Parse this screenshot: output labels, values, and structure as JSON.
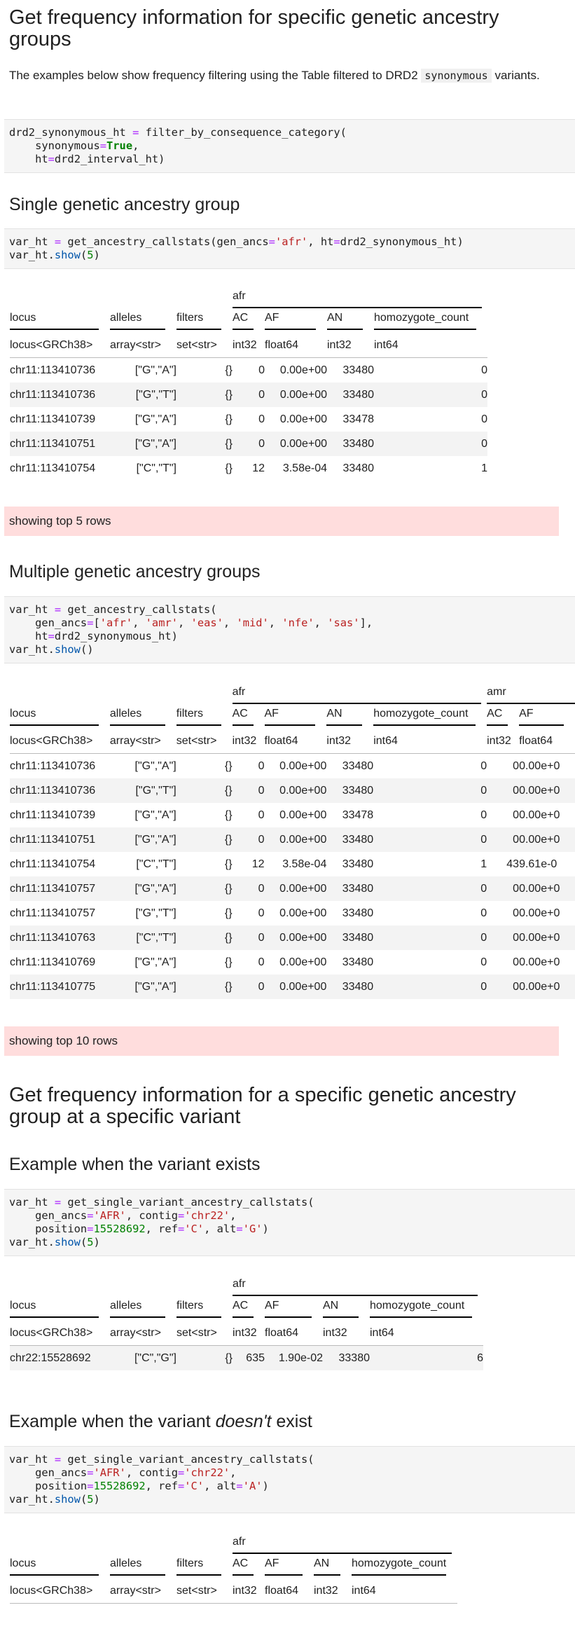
{
  "section_main": {
    "title": "Get frequency information for specific genetic ancestry groups",
    "intro_before": "The examples below show frequency filtering using the Table filtered to DRD2",
    "intro_code": "synonymous",
    "intro_after": "variants.",
    "code1": {
      "l1_a": "drd2_synonymous_ht ",
      "l1_op": "=",
      "l1_b": " filter_by_consequence_category(",
      "l2_a": "    synonymous",
      "l2_op": "=",
      "l2_kw": "True",
      "l2_b": ",",
      "l3_a": "    ht",
      "l3_op": "=",
      "l3_b": "drd2_interval_ht)"
    }
  },
  "single": {
    "title": "Single genetic ancestry group",
    "code": {
      "l1_a": "var_ht ",
      "l1_op": "=",
      "l1_b": " get_ancestry_callstats(gen_ancs",
      "l1_op2": "=",
      "l1_s": "'afr'",
      "l1_c": ", ht",
      "l1_op3": "=",
      "l1_d": "drd2_synonymous_ht)",
      "l2_a": "var_ht.",
      "l2_fn": "show",
      "l2_b": "(",
      "l2_n": "5",
      "l2_c": ")"
    },
    "table": {
      "group": "afr",
      "headers": [
        "locus",
        "alleles",
        "filters",
        "AC",
        "AF",
        "AN",
        "homozygote_count"
      ],
      "types": [
        "locus<GRCh38>",
        "array<str>",
        "set<str>",
        "int32",
        "float64",
        "int32",
        "int64"
      ],
      "rows": [
        [
          "chr11:113410736",
          "[\"G\",\"A\"]",
          "{}",
          "0",
          "0.00e+00",
          "33480",
          "0"
        ],
        [
          "chr11:113410736",
          "[\"G\",\"T\"]",
          "{}",
          "0",
          "0.00e+00",
          "33480",
          "0"
        ],
        [
          "chr11:113410739",
          "[\"G\",\"A\"]",
          "{}",
          "0",
          "0.00e+00",
          "33478",
          "0"
        ],
        [
          "chr11:113410751",
          "[\"G\",\"A\"]",
          "{}",
          "0",
          "0.00e+00",
          "33480",
          "0"
        ],
        [
          "chr11:113410754",
          "[\"C\",\"T\"]",
          "{}",
          "12",
          "3.58e-04",
          "33480",
          "1"
        ]
      ]
    },
    "notice": "showing top 5 rows"
  },
  "multiple": {
    "title": "Multiple genetic ancestry groups",
    "code": {
      "l1_a": "var_ht ",
      "l1_op": "=",
      "l1_b": " get_ancestry_callstats(",
      "l2_a": "    gen_ancs",
      "l2_op": "=",
      "l2_b": "[",
      "l2_s1": "'afr'",
      "l2_s2": "'amr'",
      "l2_s3": "'eas'",
      "l2_s4": "'mid'",
      "l2_s5": "'nfe'",
      "l2_s6": "'sas'",
      "l2_c": "],",
      "l3_a": "    ht",
      "l3_op": "=",
      "l3_b": "drd2_synonymous_ht)",
      "l4_a": "var_ht.",
      "l4_fn": "show",
      "l4_b": "()"
    },
    "table": {
      "group1": "afr",
      "group2": "amr",
      "headers": [
        "locus",
        "alleles",
        "filters",
        "AC",
        "AF",
        "AN",
        "homozygote_count",
        "AC",
        "AF"
      ],
      "types": [
        "locus<GRCh38>",
        "array<str>",
        "set<str>",
        "int32",
        "float64",
        "int32",
        "int64",
        "int32",
        "float64"
      ],
      "rows": [
        [
          "chr11:113410736",
          "[\"G\",\"A\"]",
          "{}",
          "0",
          "0.00e+00",
          "33480",
          "0",
          "0",
          "0.00e+0"
        ],
        [
          "chr11:113410736",
          "[\"G\",\"T\"]",
          "{}",
          "0",
          "0.00e+00",
          "33480",
          "0",
          "0",
          "0.00e+0"
        ],
        [
          "chr11:113410739",
          "[\"G\",\"A\"]",
          "{}",
          "0",
          "0.00e+00",
          "33478",
          "0",
          "0",
          "0.00e+0"
        ],
        [
          "chr11:113410751",
          "[\"G\",\"A\"]",
          "{}",
          "0",
          "0.00e+00",
          "33480",
          "0",
          "0",
          "0.00e+0"
        ],
        [
          "chr11:113410754",
          "[\"C\",\"T\"]",
          "{}",
          "12",
          "3.58e-04",
          "33480",
          "1",
          "43",
          "9.61e-0"
        ],
        [
          "chr11:113410757",
          "[\"G\",\"A\"]",
          "{}",
          "0",
          "0.00e+00",
          "33480",
          "0",
          "0",
          "0.00e+0"
        ],
        [
          "chr11:113410757",
          "[\"G\",\"T\"]",
          "{}",
          "0",
          "0.00e+00",
          "33480",
          "0",
          "0",
          "0.00e+0"
        ],
        [
          "chr11:113410763",
          "[\"C\",\"T\"]",
          "{}",
          "0",
          "0.00e+00",
          "33480",
          "0",
          "0",
          "0.00e+0"
        ],
        [
          "chr11:113410769",
          "[\"G\",\"A\"]",
          "{}",
          "0",
          "0.00e+00",
          "33480",
          "0",
          "0",
          "0.00e+0"
        ],
        [
          "chr11:113410775",
          "[\"G\",\"A\"]",
          "{}",
          "0",
          "0.00e+00",
          "33480",
          "0",
          "0",
          "0.00e+0"
        ]
      ]
    },
    "notice": "showing top 10 rows"
  },
  "specific": {
    "title": "Get frequency information for a specific genetic ancestry group at a specific variant",
    "exists": {
      "title": "Example when the variant exists",
      "code": {
        "l1_a": "var_ht ",
        "l1_op": "=",
        "l1_b": " get_single_variant_ancestry_callstats(",
        "l2_a": "    gen_ancs",
        "l2_op": "=",
        "l2_s": "'AFR'",
        "l2_b": ", contig",
        "l2_op2": "=",
        "l2_s2": "'chr22'",
        "l2_c": ",",
        "l3_a": "    position",
        "l3_op": "=",
        "l3_n": "15528692",
        "l3_b": ", ref",
        "l3_op2": "=",
        "l3_s": "'C'",
        "l3_c": ", alt",
        "l3_op3": "=",
        "l3_s2": "'G'",
        "l3_d": ")",
        "l4_a": "var_ht.",
        "l4_fn": "show",
        "l4_b": "(",
        "l4_n": "5",
        "l4_c": ")"
      },
      "table": {
        "group": "afr",
        "headers": [
          "locus",
          "alleles",
          "filters",
          "AC",
          "AF",
          "AN",
          "homozygote_count"
        ],
        "types": [
          "locus<GRCh38>",
          "array<str>",
          "set<str>",
          "int32",
          "float64",
          "int32",
          "int64"
        ],
        "rows": [
          [
            "chr22:15528692",
            "[\"C\",\"G\"]",
            "{}",
            "635",
            "1.90e-02",
            "33380",
            "6"
          ]
        ]
      }
    },
    "not_exists": {
      "title_before": "Example when the variant ",
      "title_em": "doesn't",
      "title_after": " exist",
      "code": {
        "l1_a": "var_ht ",
        "l1_op": "=",
        "l1_b": " get_single_variant_ancestry_callstats(",
        "l2_a": "    gen_ancs",
        "l2_op": "=",
        "l2_s": "'AFR'",
        "l2_b": ", contig",
        "l2_op2": "=",
        "l2_s2": "'chr22'",
        "l2_c": ",",
        "l3_a": "    position",
        "l3_op": "=",
        "l3_n": "15528692",
        "l3_b": ", ref",
        "l3_op2": "=",
        "l3_s": "'C'",
        "l3_c": ", alt",
        "l3_op3": "=",
        "l3_s2": "'A'",
        "l3_d": ")",
        "l4_a": "var_ht.",
        "l4_fn": "show",
        "l4_b": "(",
        "l4_n": "5",
        "l4_c": ")"
      },
      "table": {
        "group": "afr",
        "headers": [
          "locus",
          "alleles",
          "filters",
          "AC",
          "AF",
          "AN",
          "homozygote_count"
        ],
        "types": [
          "locus<GRCh38>",
          "array<str>",
          "set<str>",
          "int32",
          "float64",
          "int32",
          "int64"
        ]
      }
    }
  }
}
